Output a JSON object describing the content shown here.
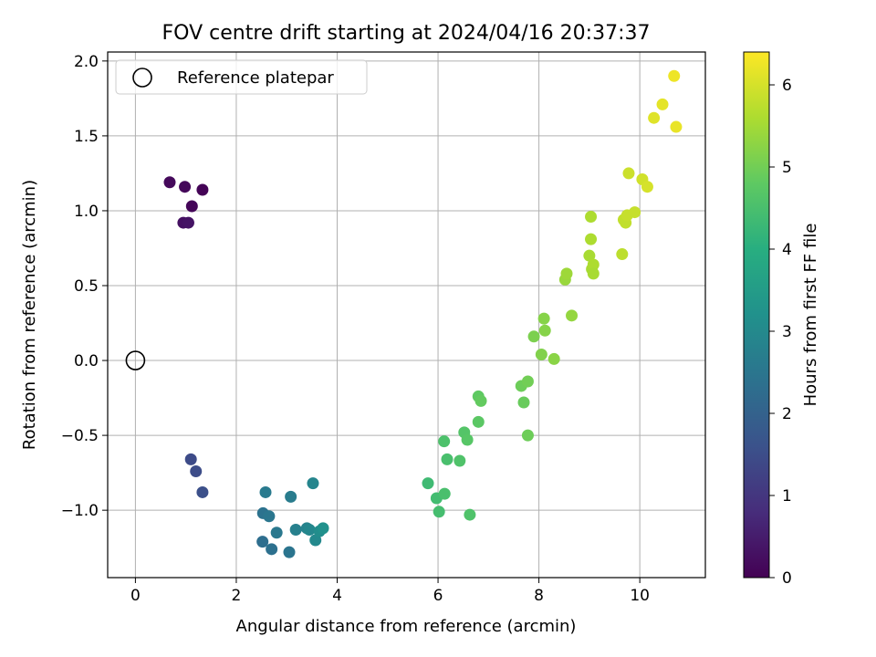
{
  "chart_data": {
    "type": "scatter",
    "title": "FOV centre drift starting at 2024/04/16 20:37:37",
    "xlabel": "Angular distance from reference (arcmin)",
    "ylabel": "Rotation from reference (arcmin)",
    "xlim": [
      -0.55,
      11.3
    ],
    "ylim": [
      -1.45,
      2.06
    ],
    "xticks": [
      0,
      2,
      4,
      6,
      8,
      10
    ],
    "xtick_labels": [
      "0",
      "2",
      "4",
      "6",
      "8",
      "10"
    ],
    "yticks": [
      -1.0,
      -0.5,
      0.0,
      0.5,
      1.0,
      1.5,
      2.0
    ],
    "ytick_labels": [
      "−1.0",
      "−0.5",
      "0.0",
      "0.5",
      "1.0",
      "1.5",
      "2.0"
    ],
    "grid": true,
    "colormap": "viridis",
    "colorbar": {
      "label": "Hours from first FF file",
      "range": [
        0,
        6.4
      ],
      "ticks": [
        0,
        1,
        2,
        3,
        4,
        5,
        6
      ],
      "tick_labels": [
        "0",
        "1",
        "2",
        "3",
        "4",
        "5",
        "6"
      ]
    },
    "legend": {
      "placement": "top-left",
      "entries": [
        {
          "label": "Reference platepar",
          "marker": "open-circle"
        }
      ]
    },
    "reference_point": {
      "x": 0.0,
      "y": 0.0
    },
    "series": [
      {
        "points": [
          {
            "x": 0.68,
            "y": 1.19,
            "c": 0.15
          },
          {
            "x": 0.98,
            "y": 1.16,
            "c": 0.1
          },
          {
            "x": 1.33,
            "y": 1.14,
            "c": 0.05
          },
          {
            "x": 1.12,
            "y": 1.03,
            "c": 0.08
          },
          {
            "x": 0.95,
            "y": 0.92,
            "c": 0.28
          },
          {
            "x": 1.05,
            "y": 0.92,
            "c": 0.32
          },
          {
            "x": 1.1,
            "y": -0.66,
            "c": 1.45
          },
          {
            "x": 1.2,
            "y": -0.74,
            "c": 1.5
          },
          {
            "x": 1.33,
            "y": -0.88,
            "c": 1.55
          },
          {
            "x": 2.58,
            "y": -0.88,
            "c": 2.6
          },
          {
            "x": 3.08,
            "y": -0.91,
            "c": 2.65
          },
          {
            "x": 3.52,
            "y": -0.82,
            "c": 2.9
          },
          {
            "x": 2.53,
            "y": -1.02,
            "c": 2.4
          },
          {
            "x": 2.65,
            "y": -1.04,
            "c": 2.5
          },
          {
            "x": 2.52,
            "y": -1.21,
            "c": 2.3
          },
          {
            "x": 2.7,
            "y": -1.26,
            "c": 2.35
          },
          {
            "x": 2.8,
            "y": -1.15,
            "c": 2.55
          },
          {
            "x": 3.05,
            "y": -1.28,
            "c": 2.45
          },
          {
            "x": 3.18,
            "y": -1.13,
            "c": 2.75
          },
          {
            "x": 3.4,
            "y": -1.12,
            "c": 2.85
          },
          {
            "x": 3.45,
            "y": -1.13,
            "c": 2.95
          },
          {
            "x": 3.57,
            "y": -1.2,
            "c": 3.0
          },
          {
            "x": 3.65,
            "y": -1.14,
            "c": 3.1
          },
          {
            "x": 3.72,
            "y": -1.12,
            "c": 3.2
          },
          {
            "x": 5.8,
            "y": -0.82,
            "c": 4.35
          },
          {
            "x": 5.97,
            "y": -0.92,
            "c": 4.4
          },
          {
            "x": 6.02,
            "y": -1.01,
            "c": 4.45
          },
          {
            "x": 6.13,
            "y": -0.89,
            "c": 4.5
          },
          {
            "x": 6.12,
            "y": -0.54,
            "c": 4.55
          },
          {
            "x": 6.18,
            "y": -0.66,
            "c": 4.5
          },
          {
            "x": 6.43,
            "y": -0.67,
            "c": 4.6
          },
          {
            "x": 6.52,
            "y": -0.48,
            "c": 4.65
          },
          {
            "x": 6.58,
            "y": -0.53,
            "c": 4.7
          },
          {
            "x": 6.63,
            "y": -1.03,
            "c": 4.6
          },
          {
            "x": 6.8,
            "y": -0.41,
            "c": 4.75
          },
          {
            "x": 6.8,
            "y": -0.24,
            "c": 4.8
          },
          {
            "x": 6.85,
            "y": -0.27,
            "c": 4.85
          },
          {
            "x": 7.65,
            "y": -0.17,
            "c": 4.95
          },
          {
            "x": 7.7,
            "y": -0.28,
            "c": 4.9
          },
          {
            "x": 7.78,
            "y": -0.14,
            "c": 5.0
          },
          {
            "x": 7.78,
            "y": -0.5,
            "c": 4.95
          },
          {
            "x": 7.9,
            "y": 0.16,
            "c": 5.1
          },
          {
            "x": 8.05,
            "y": 0.04,
            "c": 5.15
          },
          {
            "x": 8.1,
            "y": 0.28,
            "c": 5.2
          },
          {
            "x": 8.12,
            "y": 0.2,
            "c": 5.2
          },
          {
            "x": 8.3,
            "y": 0.01,
            "c": 5.25
          },
          {
            "x": 8.52,
            "y": 0.54,
            "c": 5.4
          },
          {
            "x": 8.55,
            "y": 0.58,
            "c": 5.45
          },
          {
            "x": 8.65,
            "y": 0.3,
            "c": 5.35
          },
          {
            "x": 9.0,
            "y": 0.7,
            "c": 5.55
          },
          {
            "x": 9.03,
            "y": 0.96,
            "c": 5.6
          },
          {
            "x": 9.03,
            "y": 0.81,
            "c": 5.6
          },
          {
            "x": 9.05,
            "y": 0.61,
            "c": 5.55
          },
          {
            "x": 9.08,
            "y": 0.64,
            "c": 5.6
          },
          {
            "x": 9.08,
            "y": 0.58,
            "c": 5.55
          },
          {
            "x": 9.65,
            "y": 0.71,
            "c": 5.75
          },
          {
            "x": 9.68,
            "y": 0.94,
            "c": 5.8
          },
          {
            "x": 9.72,
            "y": 0.92,
            "c": 5.8
          },
          {
            "x": 9.75,
            "y": 0.97,
            "c": 5.85
          },
          {
            "x": 9.78,
            "y": 1.25,
            "c": 5.9
          },
          {
            "x": 9.9,
            "y": 0.99,
            "c": 5.85
          },
          {
            "x": 10.05,
            "y": 1.21,
            "c": 5.95
          },
          {
            "x": 10.15,
            "y": 1.16,
            "c": 6.0
          },
          {
            "x": 10.28,
            "y": 1.62,
            "c": 6.1
          },
          {
            "x": 10.45,
            "y": 1.71,
            "c": 6.15
          },
          {
            "x": 10.68,
            "y": 1.9,
            "c": 6.25
          },
          {
            "x": 10.72,
            "y": 1.56,
            "c": 6.2
          }
        ]
      }
    ]
  }
}
